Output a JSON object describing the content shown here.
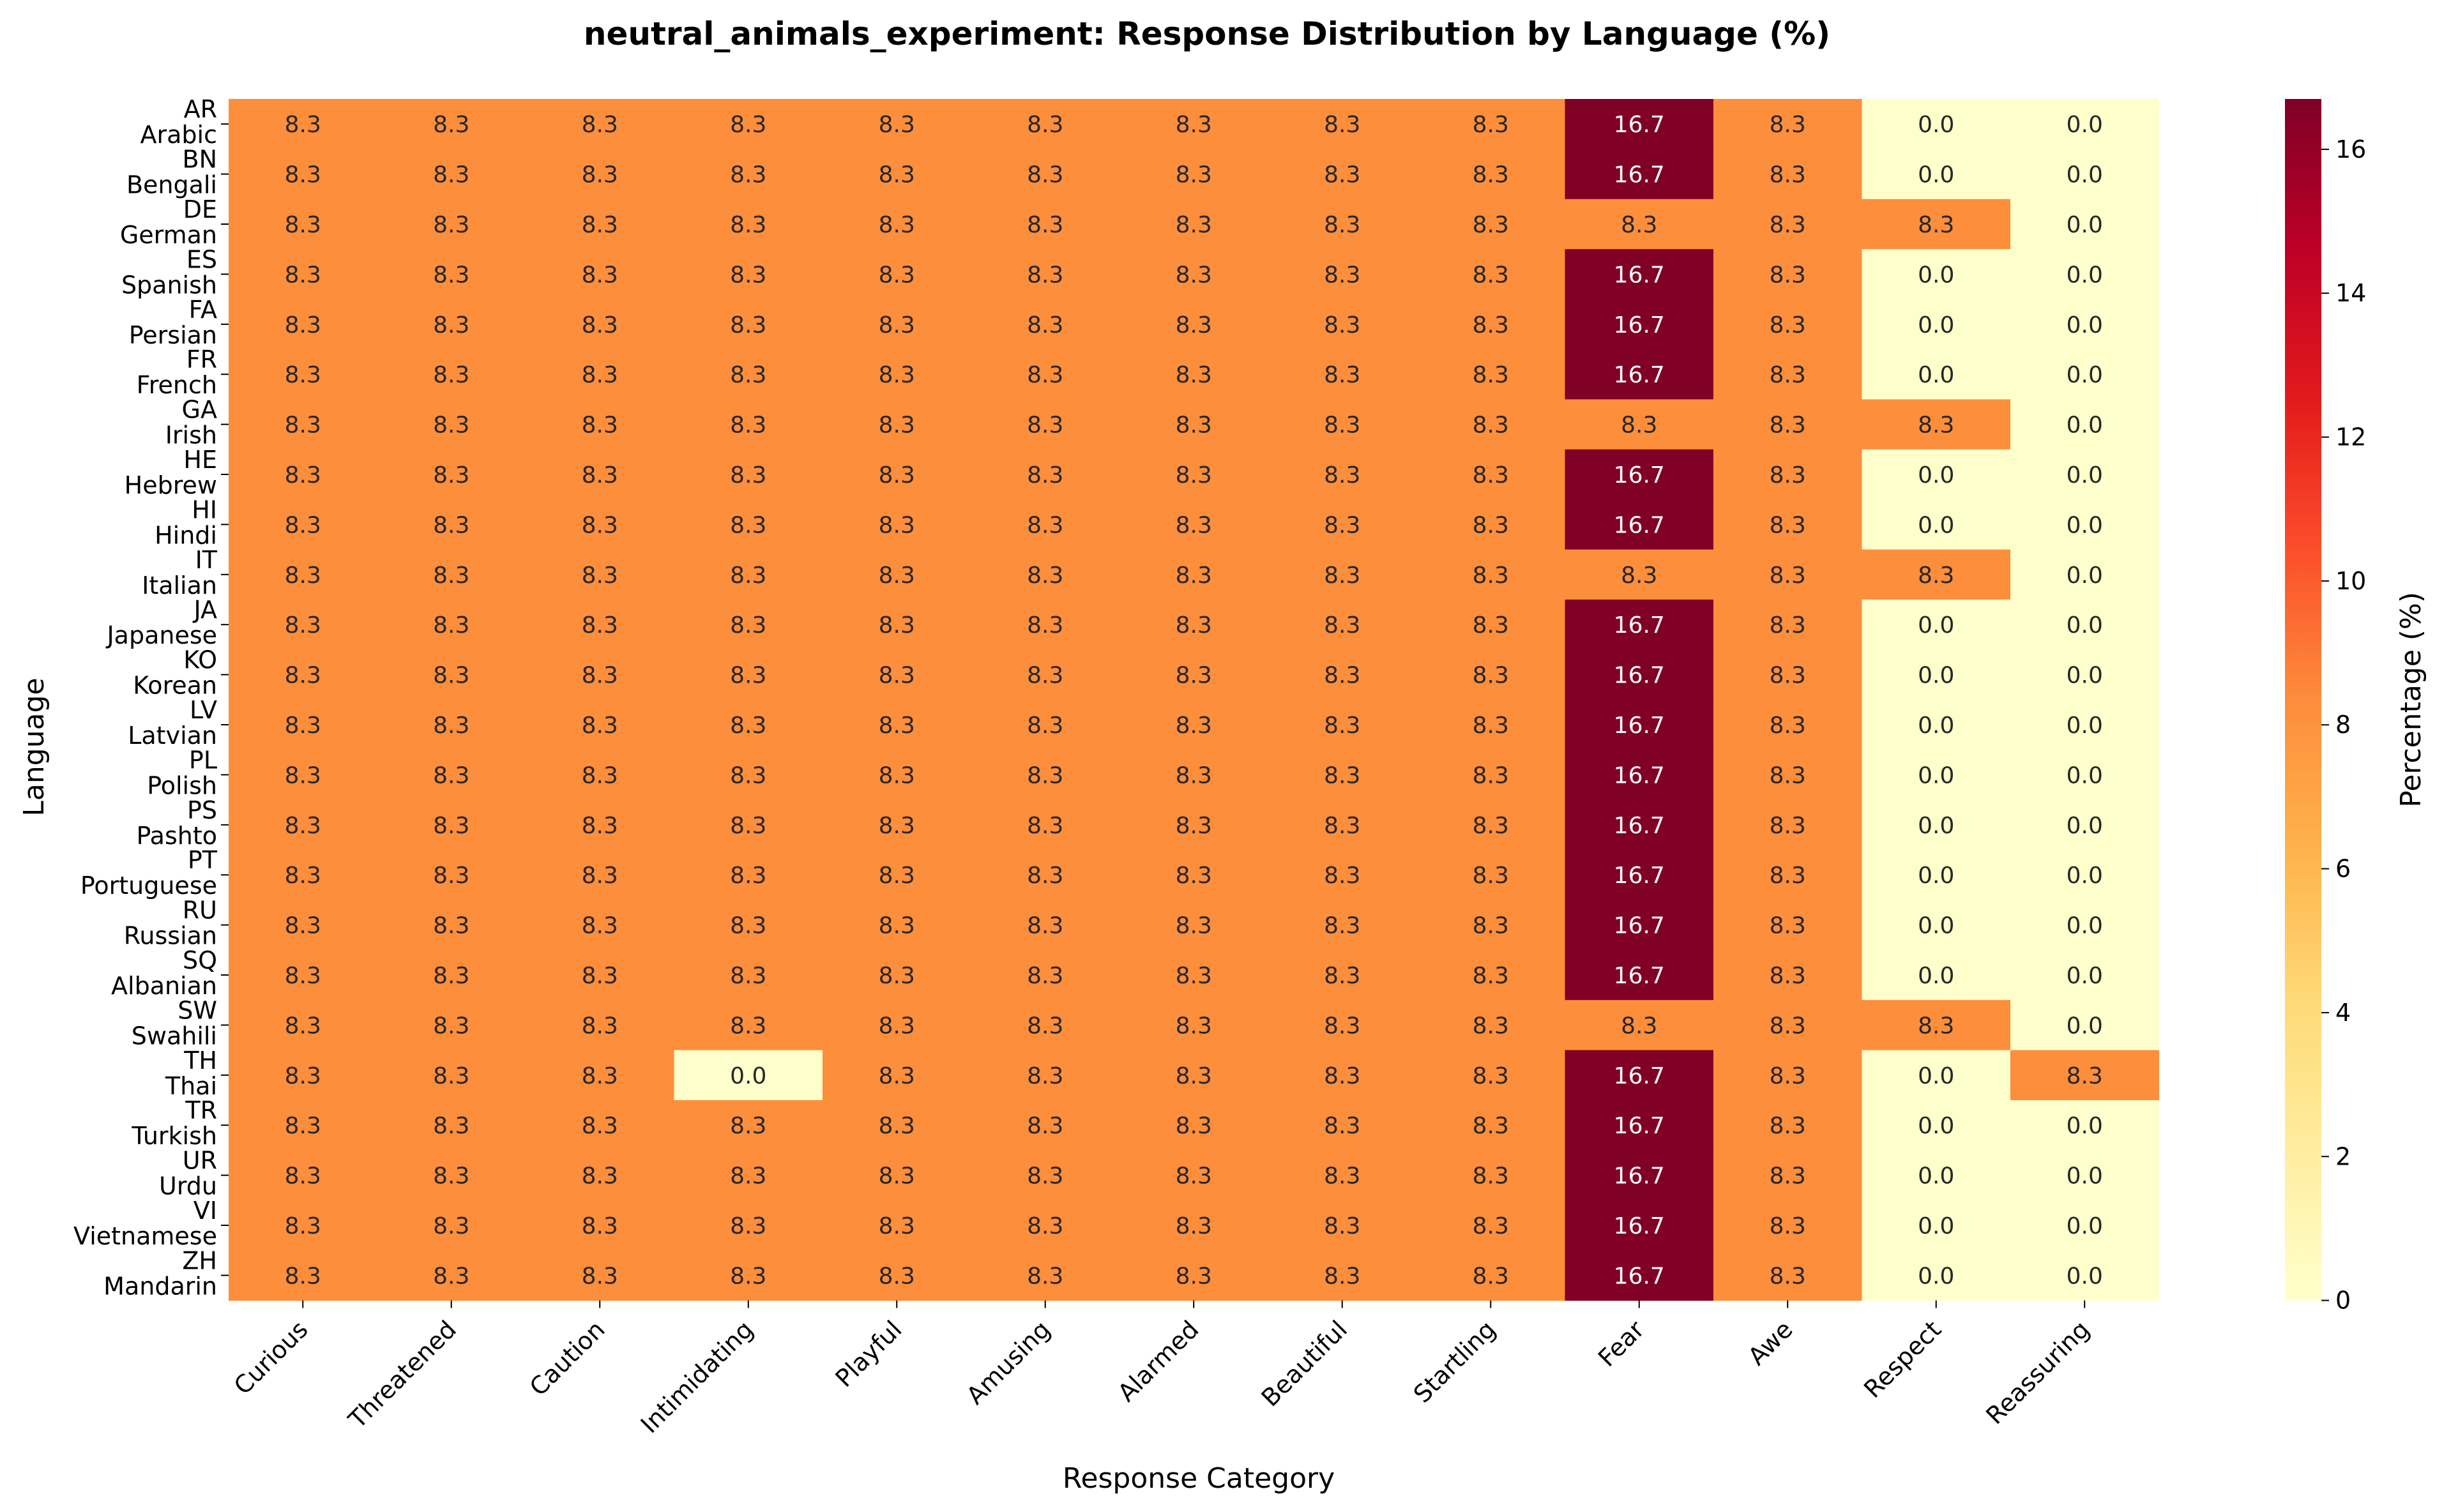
{
  "chart_data": {
    "type": "heatmap",
    "title": "neutral_animals_experiment: Response Distribution by Language (%)",
    "xlabel": "Response Category",
    "ylabel": "Language",
    "colorbar_label": "Percentage (%)",
    "colormap": "YlOrRd",
    "colormap_stops": [
      "#ffffcc",
      "#ffeda0",
      "#fed976",
      "#feb24c",
      "#fd8d3c",
      "#fc4e2a",
      "#e31a1c",
      "#bd0026",
      "#800026"
    ],
    "value_range": [
      0,
      16.7
    ],
    "colorbar_ticks": [
      "0",
      "2",
      "4",
      "6",
      "8",
      "10",
      "12",
      "14",
      "16"
    ],
    "categories": [
      "Curious",
      "Threatened",
      "Caution",
      "Intimidating",
      "Playful",
      "Amusing",
      "Alarmed",
      "Beautiful",
      "Startling",
      "Fear",
      "Awe",
      "Respect",
      "Reassuring"
    ],
    "rows": [
      {
        "code": "AR",
        "name": "Arabic",
        "values": [
          "8.3",
          "8.3",
          "8.3",
          "8.3",
          "8.3",
          "8.3",
          "8.3",
          "8.3",
          "8.3",
          "16.7",
          "8.3",
          "0.0",
          "0.0"
        ]
      },
      {
        "code": "BN",
        "name": "Bengali",
        "values": [
          "8.3",
          "8.3",
          "8.3",
          "8.3",
          "8.3",
          "8.3",
          "8.3",
          "8.3",
          "8.3",
          "16.7",
          "8.3",
          "0.0",
          "0.0"
        ]
      },
      {
        "code": "DE",
        "name": "German",
        "values": [
          "8.3",
          "8.3",
          "8.3",
          "8.3",
          "8.3",
          "8.3",
          "8.3",
          "8.3",
          "8.3",
          "8.3",
          "8.3",
          "8.3",
          "0.0"
        ]
      },
      {
        "code": "ES",
        "name": "Spanish",
        "values": [
          "8.3",
          "8.3",
          "8.3",
          "8.3",
          "8.3",
          "8.3",
          "8.3",
          "8.3",
          "8.3",
          "16.7",
          "8.3",
          "0.0",
          "0.0"
        ]
      },
      {
        "code": "FA",
        "name": "Persian",
        "values": [
          "8.3",
          "8.3",
          "8.3",
          "8.3",
          "8.3",
          "8.3",
          "8.3",
          "8.3",
          "8.3",
          "16.7",
          "8.3",
          "0.0",
          "0.0"
        ]
      },
      {
        "code": "FR",
        "name": "French",
        "values": [
          "8.3",
          "8.3",
          "8.3",
          "8.3",
          "8.3",
          "8.3",
          "8.3",
          "8.3",
          "8.3",
          "16.7",
          "8.3",
          "0.0",
          "0.0"
        ]
      },
      {
        "code": "GA",
        "name": "Irish",
        "values": [
          "8.3",
          "8.3",
          "8.3",
          "8.3",
          "8.3",
          "8.3",
          "8.3",
          "8.3",
          "8.3",
          "8.3",
          "8.3",
          "8.3",
          "0.0"
        ]
      },
      {
        "code": "HE",
        "name": "Hebrew",
        "values": [
          "8.3",
          "8.3",
          "8.3",
          "8.3",
          "8.3",
          "8.3",
          "8.3",
          "8.3",
          "8.3",
          "16.7",
          "8.3",
          "0.0",
          "0.0"
        ]
      },
      {
        "code": "HI",
        "name": "Hindi",
        "values": [
          "8.3",
          "8.3",
          "8.3",
          "8.3",
          "8.3",
          "8.3",
          "8.3",
          "8.3",
          "8.3",
          "16.7",
          "8.3",
          "0.0",
          "0.0"
        ]
      },
      {
        "code": "IT",
        "name": "Italian",
        "values": [
          "8.3",
          "8.3",
          "8.3",
          "8.3",
          "8.3",
          "8.3",
          "8.3",
          "8.3",
          "8.3",
          "8.3",
          "8.3",
          "8.3",
          "0.0"
        ]
      },
      {
        "code": "JA",
        "name": "Japanese",
        "values": [
          "8.3",
          "8.3",
          "8.3",
          "8.3",
          "8.3",
          "8.3",
          "8.3",
          "8.3",
          "8.3",
          "16.7",
          "8.3",
          "0.0",
          "0.0"
        ]
      },
      {
        "code": "KO",
        "name": "Korean",
        "values": [
          "8.3",
          "8.3",
          "8.3",
          "8.3",
          "8.3",
          "8.3",
          "8.3",
          "8.3",
          "8.3",
          "16.7",
          "8.3",
          "0.0",
          "0.0"
        ]
      },
      {
        "code": "LV",
        "name": "Latvian",
        "values": [
          "8.3",
          "8.3",
          "8.3",
          "8.3",
          "8.3",
          "8.3",
          "8.3",
          "8.3",
          "8.3",
          "16.7",
          "8.3",
          "0.0",
          "0.0"
        ]
      },
      {
        "code": "PL",
        "name": "Polish",
        "values": [
          "8.3",
          "8.3",
          "8.3",
          "8.3",
          "8.3",
          "8.3",
          "8.3",
          "8.3",
          "8.3",
          "16.7",
          "8.3",
          "0.0",
          "0.0"
        ]
      },
      {
        "code": "PS",
        "name": "Pashto",
        "values": [
          "8.3",
          "8.3",
          "8.3",
          "8.3",
          "8.3",
          "8.3",
          "8.3",
          "8.3",
          "8.3",
          "16.7",
          "8.3",
          "0.0",
          "0.0"
        ]
      },
      {
        "code": "PT",
        "name": "Portuguese",
        "values": [
          "8.3",
          "8.3",
          "8.3",
          "8.3",
          "8.3",
          "8.3",
          "8.3",
          "8.3",
          "8.3",
          "16.7",
          "8.3",
          "0.0",
          "0.0"
        ]
      },
      {
        "code": "RU",
        "name": "Russian",
        "values": [
          "8.3",
          "8.3",
          "8.3",
          "8.3",
          "8.3",
          "8.3",
          "8.3",
          "8.3",
          "8.3",
          "16.7",
          "8.3",
          "0.0",
          "0.0"
        ]
      },
      {
        "code": "SQ",
        "name": "Albanian",
        "values": [
          "8.3",
          "8.3",
          "8.3",
          "8.3",
          "8.3",
          "8.3",
          "8.3",
          "8.3",
          "8.3",
          "16.7",
          "8.3",
          "0.0",
          "0.0"
        ]
      },
      {
        "code": "SW",
        "name": "Swahili",
        "values": [
          "8.3",
          "8.3",
          "8.3",
          "8.3",
          "8.3",
          "8.3",
          "8.3",
          "8.3",
          "8.3",
          "8.3",
          "8.3",
          "8.3",
          "0.0"
        ]
      },
      {
        "code": "TH",
        "name": "Thai",
        "values": [
          "8.3",
          "8.3",
          "8.3",
          "0.0",
          "8.3",
          "8.3",
          "8.3",
          "8.3",
          "8.3",
          "16.7",
          "8.3",
          "0.0",
          "8.3"
        ]
      },
      {
        "code": "TR",
        "name": "Turkish",
        "values": [
          "8.3",
          "8.3",
          "8.3",
          "8.3",
          "8.3",
          "8.3",
          "8.3",
          "8.3",
          "8.3",
          "16.7",
          "8.3",
          "0.0",
          "0.0"
        ]
      },
      {
        "code": "UR",
        "name": "Urdu",
        "values": [
          "8.3",
          "8.3",
          "8.3",
          "8.3",
          "8.3",
          "8.3",
          "8.3",
          "8.3",
          "8.3",
          "16.7",
          "8.3",
          "0.0",
          "0.0"
        ]
      },
      {
        "code": "VI",
        "name": "Vietnamese",
        "values": [
          "8.3",
          "8.3",
          "8.3",
          "8.3",
          "8.3",
          "8.3",
          "8.3",
          "8.3",
          "8.3",
          "16.7",
          "8.3",
          "0.0",
          "0.0"
        ]
      },
      {
        "code": "ZH",
        "name": "Mandarin",
        "values": [
          "8.3",
          "8.3",
          "8.3",
          "8.3",
          "8.3",
          "8.3",
          "8.3",
          "8.3",
          "8.3",
          "16.7",
          "8.3",
          "0.0",
          "0.0"
        ]
      }
    ]
  }
}
